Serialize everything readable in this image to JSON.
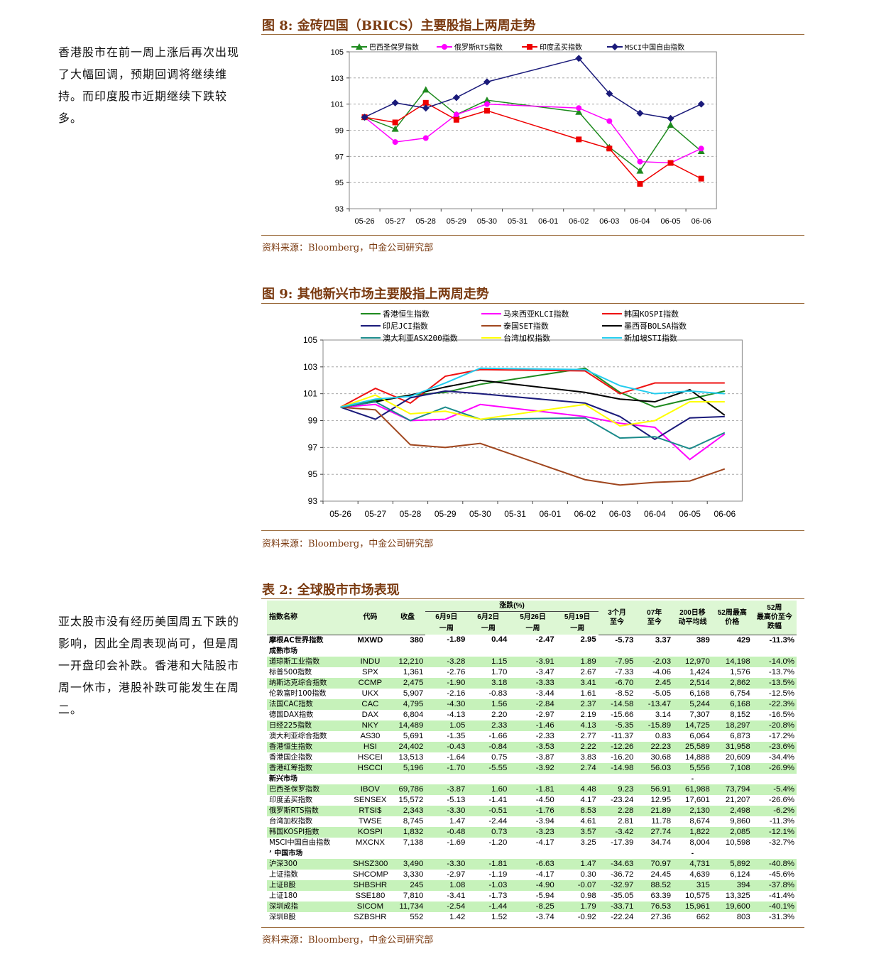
{
  "side_texts": [
    "香港股市在前一周上涨后再次出现了大幅回调，预期回调将继续维持。而印度股市近期继续下跌较多。",
    "亚太股市没有经历美国周五下跌的影响，因此全周表现尚可，但是周一开盘印会补跌。香港和大陆股市周一休市，港股补跌可能发生在周二。"
  ],
  "figure8": {
    "title": "图 8:  金砖四国（BRICS）主要股指上两周走势",
    "source": "资料来源：Bloomberg，中金公司研究部"
  },
  "figure9": {
    "title": "图 9:  其他新兴市场主要股指上两周走势",
    "source": "资料来源：Bloomberg，中金公司研究部"
  },
  "table2": {
    "title": "表 2:  全球股市市场表现",
    "source": "资料来源：Bloomberg，中金公司研究部"
  },
  "chart_data": [
    {
      "type": "line",
      "categories": [
        "05-26",
        "05-27",
        "05-28",
        "05-29",
        "05-30",
        "05-31",
        "06-01",
        "06-02",
        "06-03",
        "06-04",
        "06-05",
        "06-06"
      ],
      "ylim": [
        93,
        105
      ],
      "yticks": [
        "93",
        "95",
        "97",
        "99",
        "101",
        "103",
        "105"
      ],
      "legend_position": "top",
      "series": [
        {
          "name": "巴西圣保罗指数",
          "color": "#1e8a1e",
          "marker": "triangle",
          "x": [
            0,
            1,
            2,
            3,
            4,
            7,
            8,
            9,
            10,
            11
          ],
          "values": [
            100,
            99.1,
            102.1,
            100.2,
            101.3,
            100.4,
            97.7,
            95.9,
            99.4,
            97.4
          ]
        },
        {
          "name": "俄罗斯RTS指数",
          "color": "#ff00ff",
          "marker": "circle",
          "x": [
            0,
            1,
            2,
            3,
            4,
            7,
            8,
            9,
            10,
            11
          ],
          "values": [
            100,
            98.1,
            98.4,
            100.2,
            101,
            100.7,
            99.7,
            96.6,
            96.5,
            97.6
          ]
        },
        {
          "name": "印度孟买指数",
          "color": "#ee0000",
          "marker": "square",
          "x": [
            0,
            1,
            2,
            3,
            4,
            7,
            8,
            9,
            10,
            11
          ],
          "values": [
            100,
            99.6,
            101.1,
            99.8,
            100.5,
            98.3,
            97.6,
            94.9,
            96.5,
            95.3
          ]
        },
        {
          "name": "MSCI中国自由指数",
          "color": "#1a1a7a",
          "marker": "diamond",
          "x": [
            0,
            1,
            2,
            3,
            4,
            7,
            8,
            9,
            10,
            11
          ],
          "values": [
            100,
            101.1,
            100.7,
            101.5,
            102.7,
            104.5,
            101.8,
            100.3,
            99.9,
            101
          ]
        }
      ]
    },
    {
      "type": "line",
      "categories": [
        "05-26",
        "05-27",
        "05-28",
        "05-29",
        "05-30",
        "05-31",
        "06-01",
        "06-02",
        "06-03",
        "06-04",
        "06-05",
        "06-06"
      ],
      "ylim": [
        93,
        105
      ],
      "yticks": [
        "93",
        "95",
        "97",
        "99",
        "101",
        "103",
        "105"
      ],
      "legend_position": "top",
      "series": [
        {
          "name": "香港恒生指数",
          "color": "#1e8a1e",
          "x": [
            0,
            1,
            2,
            3,
            4,
            7,
            8,
            9,
            10,
            11
          ],
          "values": [
            100,
            100.5,
            100.9,
            101.1,
            101.7,
            102.9,
            101.1,
            100,
            100.6,
            101.2
          ]
        },
        {
          "name": "马来西亚KLCI指数",
          "color": "#ff00ff",
          "x": [
            0,
            1,
            2,
            3,
            4,
            7,
            8,
            9,
            10,
            11
          ],
          "values": [
            100,
            100.2,
            99,
            99.1,
            100.2,
            99.3,
            98.8,
            98.5,
            96.1,
            98
          ]
        },
        {
          "name": "韩国KOSPI指数",
          "color": "#ee1111",
          "x": [
            0,
            1,
            2,
            3,
            4,
            7,
            8,
            9,
            10,
            11
          ],
          "values": [
            100,
            101.4,
            100.3,
            102.3,
            102.8,
            102.7,
            101,
            101.8,
            101.8,
            101.8
          ]
        },
        {
          "name": "印尼JCI指数",
          "color": "#1a1a7a",
          "x": [
            0,
            1,
            2,
            3,
            4,
            7,
            8,
            9,
            10,
            11
          ],
          "values": [
            100,
            99.1,
            100.7,
            101.2,
            101,
            100.3,
            99.3,
            97.6,
            99.2,
            99.3
          ]
        },
        {
          "name": "泰国SET指数",
          "color": "#a0461e",
          "x": [
            0,
            1,
            2,
            3,
            4,
            7,
            8,
            9,
            10,
            11
          ],
          "values": [
            100,
            99.8,
            97.2,
            97,
            97.3,
            94.6,
            94.2,
            94.4,
            94.5,
            95.4
          ]
        },
        {
          "name": "墨西哥BOLSA指数",
          "color": "#000000",
          "x": [
            0,
            1,
            2,
            3,
            4,
            7,
            8,
            9,
            10,
            11
          ],
          "values": [
            100,
            100.4,
            100.9,
            101.5,
            102,
            101.1,
            100.6,
            100.4,
            101.3,
            99.4
          ]
        },
        {
          "name": "澳大利亚ASX200指数",
          "color": "#1a8a8a",
          "x": [
            0,
            1,
            2,
            3,
            4,
            7,
            8,
            9,
            10,
            11
          ],
          "values": [
            100,
            100.4,
            99,
            100,
            99.1,
            99.2,
            97.7,
            97.8,
            96.9,
            98.1
          ]
        },
        {
          "name": "台湾加权指数",
          "color": "#ffff00",
          "x": [
            0,
            1,
            2,
            3,
            4,
            7,
            8,
            9,
            10,
            11
          ],
          "values": [
            100,
            100.9,
            99.5,
            99.7,
            99.1,
            100.2,
            98.6,
            99,
            100.4,
            100.4
          ]
        },
        {
          "name": "新加坡STI指数",
          "color": "#22ccee",
          "x": [
            0,
            1,
            2,
            3,
            4,
            7,
            8,
            9,
            10,
            11
          ],
          "values": [
            100,
            100.6,
            100.8,
            101.8,
            102.9,
            102.8,
            101.6,
            101,
            101.2,
            101
          ]
        }
      ]
    },
    {
      "type": "table",
      "header_top": "涨跌(%)",
      "headers": [
        "指数名称",
        "代码",
        "收盘",
        "6月9日\n一周",
        "6月2日\n一周",
        "5月26日\n一周",
        "5月19日\n一周",
        "3个月\n至今",
        "07年\n至今",
        "200日移\n动平均线",
        "52周最高\n价格",
        "52周\n最高价至今\n跌幅"
      ],
      "rows": [
        {
          "kind": "bold",
          "cells": [
            "摩根AC世界指数",
            "MXWD",
            "380",
            "-1.89",
            "0.44",
            "-2.47",
            "2.95",
            "-5.73",
            "3.37",
            "389",
            "429",
            "-11.3%"
          ]
        },
        {
          "kind": "sec",
          "cells": [
            "成熟市场",
            "",
            "",
            "",
            "",
            "",
            "",
            "",
            "",
            "",
            "",
            ""
          ]
        },
        {
          "kind": "g",
          "cells": [
            "道琼斯工业指数",
            "INDU",
            "12,210",
            "-3.28",
            "1.15",
            "-3.91",
            "1.89",
            "-7.95",
            "-2.03",
            "12,970",
            "14,198",
            "-14.0%"
          ]
        },
        {
          "kind": "w",
          "cells": [
            "标普500指数",
            "SPX",
            "1,361",
            "-2.76",
            "1.70",
            "-3.47",
            "2.67",
            "-7.33",
            "-4.06",
            "1,424",
            "1,576",
            "-13.7%"
          ]
        },
        {
          "kind": "g",
          "cells": [
            "纳斯达克综合指数",
            "CCMP",
            "2,475",
            "-1.90",
            "3.18",
            "-3.33",
            "3.41",
            "-6.70",
            "2.45",
            "2,514",
            "2,862",
            "-13.5%"
          ]
        },
        {
          "kind": "w",
          "cells": [
            "伦敦富时100指数",
            "UKX",
            "5,907",
            "-2.16",
            "-0.83",
            "-3.44",
            "1.61",
            "-8.52",
            "-5.05",
            "6,168",
            "6,754",
            "-12.5%"
          ]
        },
        {
          "kind": "g",
          "cells": [
            "法国CAC指数",
            "CAC",
            "4,795",
            "-4.30",
            "1.56",
            "-2.84",
            "2.37",
            "-14.58",
            "-13.47",
            "5,244",
            "6,168",
            "-22.3%"
          ]
        },
        {
          "kind": "w",
          "cells": [
            "德国DAX指数",
            "DAX",
            "6,804",
            "-4.13",
            "2.20",
            "-2.97",
            "2.19",
            "-15.66",
            "3.14",
            "7,307",
            "8,152",
            "-16.5%"
          ]
        },
        {
          "kind": "g",
          "cells": [
            "日经225指数",
            "NKY",
            "14,489",
            "1.05",
            "2.33",
            "-1.46",
            "4.13",
            "-5.35",
            "-15.89",
            "14,725",
            "18,297",
            "-20.8%"
          ]
        },
        {
          "kind": "w",
          "cells": [
            "澳大利亚综合指数",
            "AS30",
            "5,691",
            "-1.35",
            "-1.66",
            "-2.33",
            "2.77",
            "-11.37",
            "0.83",
            "6,064",
            "6,873",
            "-17.2%"
          ]
        },
        {
          "kind": "g",
          "cells": [
            "香港恒生指数",
            "HSI",
            "24,402",
            "-0.43",
            "-0.84",
            "-3.53",
            "2.22",
            "-12.26",
            "22.23",
            "25,589",
            "31,958",
            "-23.6%"
          ]
        },
        {
          "kind": "w",
          "cells": [
            "香港国企指数",
            "HSCEI",
            "13,513",
            "-1.64",
            "0.75",
            "-3.87",
            "3.83",
            "-16.20",
            "30.68",
            "14,888",
            "20,609",
            "-34.4%"
          ]
        },
        {
          "kind": "g",
          "cells": [
            "香港红筹指数",
            "HSCCI",
            "5,196",
            "-1.70",
            "-5.55",
            "-3.92",
            "2.74",
            "-14.98",
            "56.03",
            "5,556",
            "7,108",
            "-26.9%"
          ]
        },
        {
          "kind": "sec",
          "cells": [
            "新兴市场",
            "",
            "",
            "",
            "",
            "",
            "",
            "",
            "",
            "-",
            "",
            ""
          ]
        },
        {
          "kind": "g",
          "cells": [
            "巴西圣保罗指数",
            "IBOV",
            "69,786",
            "-3.87",
            "1.60",
            "-1.81",
            "4.48",
            "9.23",
            "56.91",
            "61,988",
            "73,794",
            "-5.4%"
          ]
        },
        {
          "kind": "w",
          "cells": [
            "印度孟买指数",
            "SENSEX",
            "15,572",
            "-5.13",
            "-1.41",
            "-4.50",
            "4.17",
            "-23.24",
            "12.95",
            "17,601",
            "21,207",
            "-26.6%"
          ]
        },
        {
          "kind": "g",
          "cells": [
            "俄罗斯RTS指数",
            "RTSI$",
            "2,343",
            "-3.30",
            "-0.51",
            "-1.76",
            "8.53",
            "2.28",
            "21.89",
            "2,130",
            "2,498",
            "-6.2%"
          ]
        },
        {
          "kind": "w",
          "cells": [
            "台湾加权指数",
            "TWSE",
            "8,745",
            "1.47",
            "-2.44",
            "-3.94",
            "4.61",
            "2.81",
            "11.78",
            "8,674",
            "9,860",
            "-11.3%"
          ]
        },
        {
          "kind": "g",
          "cells": [
            "韩国KOSPI指数",
            "KOSPI",
            "1,832",
            "-0.48",
            "0.73",
            "-3.23",
            "3.57",
            "-3.42",
            "27.74",
            "1,822",
            "2,085",
            "-12.1%"
          ]
        },
        {
          "kind": "w",
          "cells": [
            "MSCI中国自由指数",
            "MXCNX",
            "7,138",
            "-1.69",
            "-1.20",
            "-4.17",
            "3.25",
            "-17.39",
            "34.74",
            "8,004",
            "10,598",
            "-32.7%"
          ]
        },
        {
          "kind": "sec",
          "cells": [
            "’ 中国市场",
            "",
            "",
            "",
            "",
            "",
            "",
            "",
            "",
            "-",
            "",
            ""
          ]
        },
        {
          "kind": "g",
          "cells": [
            "沪深300",
            "SHSZ300",
            "3,490",
            "-3.30",
            "-1.81",
            "-6.63",
            "1.47",
            "-34.63",
            "70.97",
            "4,731",
            "5,892",
            "-40.8%"
          ]
        },
        {
          "kind": "w",
          "cells": [
            "上证指数",
            "SHCOMP",
            "3,330",
            "-2.97",
            "-1.19",
            "-4.17",
            "0.30",
            "-36.72",
            "24.45",
            "4,639",
            "6,124",
            "-45.6%"
          ]
        },
        {
          "kind": "g",
          "cells": [
            "上证B股",
            "SHBSHR",
            "245",
            "1.08",
            "-1.03",
            "-4.90",
            "-0.07",
            "-32.97",
            "88.52",
            "315",
            "394",
            "-37.8%"
          ]
        },
        {
          "kind": "w",
          "cells": [
            "上证180",
            "SSE180",
            "7,810",
            "-3.41",
            "-1.73",
            "-5.94",
            "0.98",
            "-35.05",
            "63.39",
            "10,575",
            "13,325",
            "-41.4%"
          ]
        },
        {
          "kind": "g",
          "cells": [
            "深圳成指",
            "SICOM",
            "11,734",
            "-2.54",
            "-1.44",
            "-8.25",
            "1.79",
            "-33.71",
            "76.53",
            "15,961",
            "19,600",
            "-40.1%"
          ]
        },
        {
          "kind": "w",
          "cells": [
            "深圳B股",
            "SZBSHR",
            "552",
            "1.42",
            "1.52",
            "-3.74",
            "-0.92",
            "-22.24",
            "27.36",
            "662",
            "803",
            "-31.3%"
          ]
        }
      ]
    }
  ]
}
